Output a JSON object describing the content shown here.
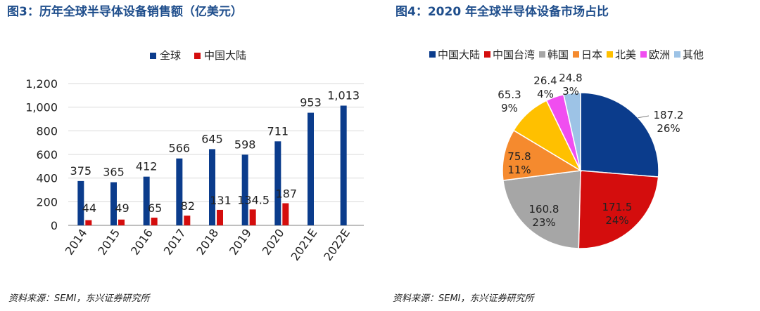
{
  "left": {
    "title": "图3：历年全球半导体设备销售额（亿美元）",
    "source": "资料来源：SEMI，东兴证券研究所",
    "chart_data": {
      "type": "bar",
      "categories": [
        "2014",
        "2015",
        "2016",
        "2017",
        "2018",
        "2019",
        "2020",
        "2021E",
        "2022E"
      ],
      "series": [
        {
          "name": "全球",
          "color": "#0b3c8c",
          "values": [
            375,
            365,
            412,
            566,
            645,
            598,
            711,
            953,
            1013
          ],
          "labels": [
            "375",
            "365",
            "412",
            "566",
            "645",
            "598",
            "711",
            "953",
            "1,013"
          ]
        },
        {
          "name": "中国大陆",
          "color": "#d40d0d",
          "values": [
            44,
            49,
            65,
            82,
            131,
            134.5,
            187,
            null,
            null
          ],
          "labels": [
            "44",
            "49",
            "65",
            "82",
            "131",
            "134.5",
            "187",
            "",
            ""
          ]
        }
      ],
      "ylim": [
        0,
        1200
      ],
      "yticks": [
        "0",
        "200",
        "400",
        "600",
        "800",
        "1,000",
        "1,200"
      ],
      "grid": true,
      "legend": "top-center"
    }
  },
  "right": {
    "title": "图4：2020 年全球半导体设备市场占比",
    "source": "资料来源：SEMI，东兴证券研究所",
    "chart_data": {
      "type": "pie",
      "slices": [
        {
          "name": "中国大陆",
          "value": 187.2,
          "percent": "26%",
          "color": "#0b3c8c"
        },
        {
          "name": "中国台湾",
          "value": 171.5,
          "percent": "24%",
          "color": "#d40d0d"
        },
        {
          "name": "韩国",
          "value": 160.8,
          "percent": "23%",
          "color": "#a6a6a6"
        },
        {
          "name": "日本",
          "value": 75.8,
          "percent": "11%",
          "color": "#f58a2e"
        },
        {
          "name": "北美",
          "value": 65.3,
          "percent": "9%",
          "color": "#ffc000"
        },
        {
          "name": "欧洲",
          "value": 26.4,
          "percent": "4%",
          "color": "#f04ef0"
        },
        {
          "name": "其他",
          "value": 24.8,
          "percent": "3%",
          "color": "#9dc3e6"
        }
      ],
      "legend": "top"
    }
  }
}
